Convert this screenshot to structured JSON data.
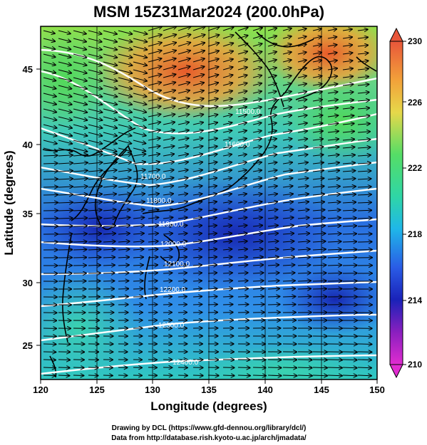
{
  "title": "MSM 15Z31Mar2024 (200.0hPa)",
  "xlabel": "Longitude (degrees)",
  "ylabel": "Latitude  (degrees)",
  "x_ticks": [
    "120",
    "125",
    "130",
    "135",
    "140",
    "145",
    "150"
  ],
  "y_ticks": [
    "25",
    "30",
    "35",
    "40",
    "45"
  ],
  "colorbar": {
    "ticks": [
      "230",
      "226",
      "222",
      "218",
      "214",
      "210"
    ],
    "range": [
      210,
      230
    ]
  },
  "contour_labels": [
    "11500.0",
    "11600.0",
    "11700.0",
    "11800.0",
    "11900.0",
    "12000.0",
    "12100.0",
    "12200.0",
    "12300.0",
    "12400.0"
  ],
  "credits": [
    "Drawing by DCL (https://www.gfd-dennou.org/library/dcl/)",
    "Data from http://database.rish.kyoto-u.ac.jp/arch/jmadata/"
  ],
  "chart_data": {
    "type": "heatmap",
    "title": "MSM 15Z31Mar2024 (200.0hPa)",
    "xlabel": "Longitude (degrees)",
    "ylabel": "Latitude  (degrees)",
    "xlim": [
      120,
      150
    ],
    "ylim": [
      22.5,
      47.5
    ],
    "color_range": [
      210,
      230
    ],
    "temperature_field_approx": [
      {
        "lon": 122,
        "lat": 45,
        "value": 221
      },
      {
        "lon": 130,
        "lat": 44,
        "value": 227
      },
      {
        "lon": 136,
        "lat": 45,
        "value": 228
      },
      {
        "lon": 144,
        "lat": 46,
        "value": 228
      },
      {
        "lon": 148,
        "lat": 41,
        "value": 223
      },
      {
        "lon": 124,
        "lat": 38,
        "value": 217
      },
      {
        "lon": 135,
        "lat": 38,
        "value": 215
      },
      {
        "lon": 128,
        "lat": 33,
        "value": 215
      },
      {
        "lon": 140,
        "lat": 33,
        "value": 213
      },
      {
        "lon": 122,
        "lat": 28,
        "value": 219
      },
      {
        "lon": 135,
        "lat": 29,
        "value": 215
      },
      {
        "lon": 145,
        "lat": 27,
        "value": 214
      },
      {
        "lon": 125,
        "lat": 24,
        "value": 220
      },
      {
        "lon": 145,
        "lat": 24,
        "value": 221
      }
    ],
    "height_contours": [
      11500,
      11600,
      11700,
      11800,
      11900,
      12000,
      12100,
      12200,
      12300,
      12400
    ],
    "wind_vectors": "westerly"
  }
}
